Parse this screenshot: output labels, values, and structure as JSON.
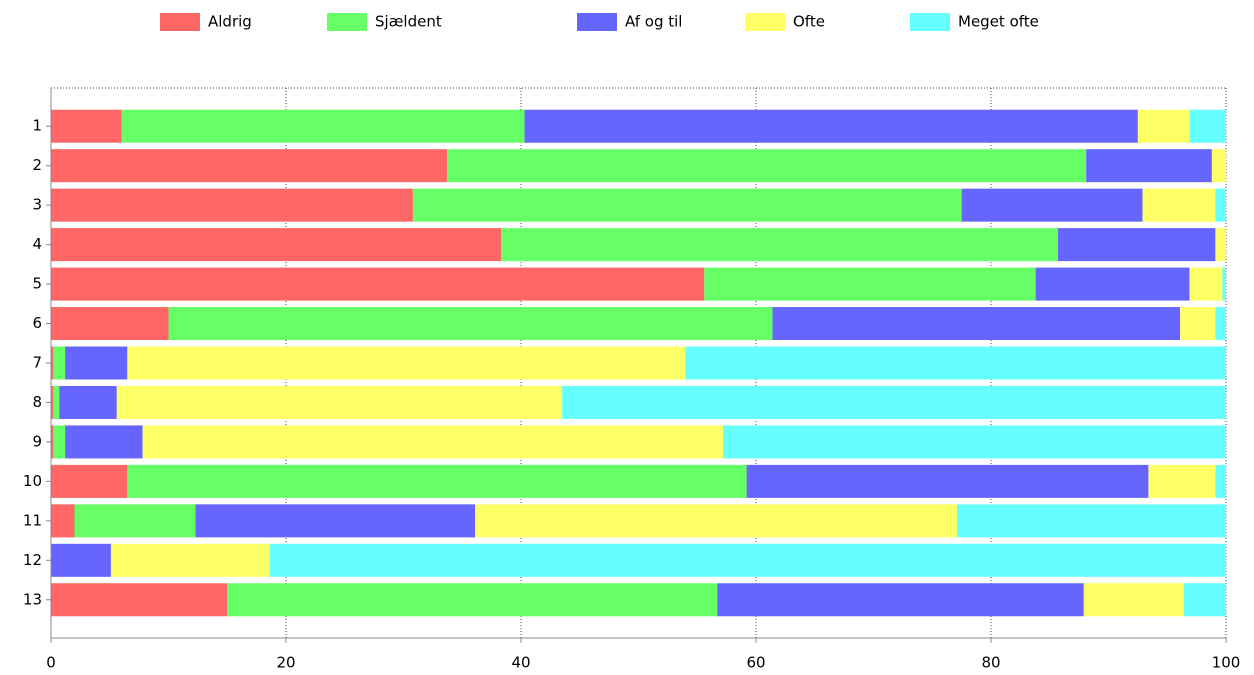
{
  "chart_data": {
    "type": "stacked-barh",
    "categories": [
      "1",
      "2",
      "3",
      "4",
      "5",
      "6",
      "7",
      "8",
      "9",
      "10",
      "11",
      "12",
      "13"
    ],
    "series": [
      {
        "name": "Aldrig",
        "color": "#ff6666",
        "values": [
          6,
          33.7,
          30.8,
          38.3,
          55.6,
          10,
          0.2,
          0.2,
          0.2,
          6.5,
          2,
          0,
          15
        ]
      },
      {
        "name": "Sjældent",
        "color": "#66ff66",
        "values": [
          34.3,
          54.4,
          46.7,
          47.4,
          28.2,
          51.4,
          1,
          0.5,
          1,
          52.7,
          10.3,
          0,
          41.7
        ]
      },
      {
        "name": "Af og til",
        "color": "#6666ff",
        "values": [
          52.2,
          10.7,
          15.4,
          13.4,
          13.1,
          34.7,
          5.3,
          4.9,
          6.6,
          34.2,
          23.8,
          5.1,
          31.2
        ]
      },
      {
        "name": "Ofte",
        "color": "#ffff66",
        "values": [
          4.4,
          1.2,
          6.2,
          0.9,
          2.8,
          3,
          47.5,
          37.9,
          49.4,
          5.7,
          41,
          13.5,
          8.5
        ]
      },
      {
        "name": "Meget ofte",
        "color": "#66ffff",
        "values": [
          3.1,
          0,
          0.9,
          0,
          0.3,
          0.9,
          46,
          56.5,
          42.8,
          0.9,
          22.9,
          81.4,
          3.6
        ]
      }
    ],
    "xlim": [
      0,
      100
    ],
    "xticks": [
      0,
      20,
      40,
      60,
      80,
      100
    ],
    "grid": true,
    "legend": "top"
  }
}
